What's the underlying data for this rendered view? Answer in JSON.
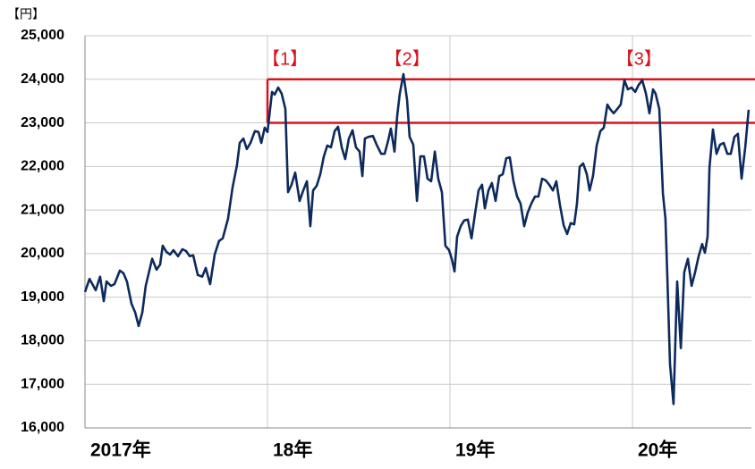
{
  "chart_data": {
    "type": "line",
    "unit_label": "【円】",
    "color": "#0d2a5c",
    "xlim": [
      2017,
      2020.652
    ],
    "xticks": [
      {
        "value": 2017,
        "label": "2017年"
      },
      {
        "value": 2018,
        "label": "18年"
      },
      {
        "value": 2019,
        "label": "19年"
      },
      {
        "value": 2020,
        "label": "20年"
      }
    ],
    "ylim": [
      16000,
      25000
    ],
    "yticks": [
      {
        "value": 16000,
        "label": "16,000"
      },
      {
        "value": 17000,
        "label": "17,000"
      },
      {
        "value": 18000,
        "label": "18,000"
      },
      {
        "value": 19000,
        "label": "19,000"
      },
      {
        "value": 20000,
        "label": "20,000"
      },
      {
        "value": 21000,
        "label": "21,000"
      },
      {
        "value": 22000,
        "label": "22,000"
      },
      {
        "value": 23000,
        "label": "23,000"
      },
      {
        "value": 24000,
        "label": "24,000"
      },
      {
        "value": 25000,
        "label": "25,000"
      }
    ],
    "grid": true,
    "highlight_band": {
      "color": "#d7141e",
      "xstart": 2018,
      "ylim": [
        23000,
        24000
      ]
    },
    "annotations": [
      {
        "label": "【1】",
        "x": 2018.0
      },
      {
        "label": "【2】",
        "x": 2018.67
      },
      {
        "label": "【3】",
        "x": 2019.94
      }
    ],
    "x": [
      2017.0,
      2017.025,
      2017.059,
      2017.083,
      2017.103,
      2017.118,
      2017.142,
      2017.162,
      2017.191,
      2017.211,
      2017.23,
      2017.255,
      2017.275,
      2017.294,
      2017.314,
      2017.333,
      2017.368,
      2017.392,
      2017.412,
      2017.426,
      2017.446,
      2017.466,
      2017.485,
      2017.51,
      2017.534,
      2017.554,
      2017.574,
      2017.593,
      2017.618,
      2017.642,
      2017.662,
      2017.686,
      2017.711,
      2017.735,
      2017.755,
      2017.784,
      2017.809,
      2017.833,
      2017.848,
      2017.868,
      2017.887,
      2017.907,
      2017.931,
      2017.951,
      2017.966,
      2017.985,
      2018.0,
      2018.025,
      2018.039,
      2018.059,
      2018.078,
      2018.098,
      2018.113,
      2018.132,
      2018.152,
      2018.176,
      2018.196,
      2018.216,
      2018.235,
      2018.25,
      2018.27,
      2018.289,
      2018.309,
      2018.328,
      2018.348,
      2018.368,
      2018.387,
      2018.407,
      2018.426,
      2018.446,
      2018.466,
      2018.485,
      2018.505,
      2018.52,
      2018.534,
      2018.554,
      2018.578,
      2018.598,
      2018.623,
      2018.642,
      2018.662,
      2018.676,
      2018.696,
      2018.711,
      2018.725,
      2018.745,
      2018.765,
      2018.779,
      2018.799,
      2018.819,
      2018.838,
      2018.858,
      2018.877,
      2018.897,
      2018.917,
      2018.936,
      2018.956,
      2018.975,
      2018.995,
      2019.01,
      2019.025,
      2019.039,
      2019.059,
      2019.078,
      2019.098,
      2019.118,
      2019.137,
      2019.157,
      2019.176,
      2019.191,
      2019.211,
      2019.23,
      2019.25,
      2019.27,
      2019.289,
      2019.309,
      2019.328,
      2019.348,
      2019.368,
      2019.387,
      2019.407,
      2019.426,
      2019.446,
      2019.466,
      2019.485,
      2019.505,
      2019.525,
      2019.544,
      2019.564,
      2019.583,
      2019.603,
      2019.623,
      2019.642,
      2019.662,
      2019.681,
      2019.696,
      2019.711,
      2019.73,
      2019.75,
      2019.765,
      2019.784,
      2019.804,
      2019.824,
      2019.843,
      2019.863,
      2019.877,
      2019.897,
      2019.917,
      2019.936,
      2019.956,
      2019.975,
      2019.995,
      2020.015,
      2020.034,
      2020.054,
      2020.074,
      2020.093,
      2020.113,
      2020.127,
      2020.147,
      2020.167,
      2020.181,
      2020.191,
      2020.206,
      2020.225,
      2020.245,
      2020.265,
      2020.284,
      2020.304,
      2020.324,
      2020.343,
      2020.363,
      2020.382,
      2020.397,
      2020.412,
      2020.422,
      2020.441,
      2020.461,
      2020.48,
      2020.5,
      2020.52,
      2020.539,
      2020.559,
      2020.578,
      2020.598,
      2020.618,
      2020.637
    ],
    "values": [
      19120,
      19420,
      19160,
      19470,
      18910,
      19360,
      19260,
      19300,
      19610,
      19550,
      19360,
      18850,
      18650,
      18340,
      18650,
      19260,
      19880,
      19630,
      19750,
      20180,
      20040,
      19980,
      20080,
      19940,
      20100,
      20060,
      19940,
      19960,
      19510,
      19470,
      19670,
      19300,
      19980,
      20290,
      20350,
      20800,
      21520,
      22030,
      22540,
      22640,
      22400,
      22540,
      22810,
      22790,
      22540,
      22890,
      22790,
      23710,
      23650,
      23810,
      23670,
      23320,
      21410,
      21580,
      21860,
      21210,
      21450,
      21660,
      20630,
      21450,
      21560,
      21820,
      22230,
      22480,
      22440,
      22810,
      22910,
      22440,
      22170,
      22640,
      22830,
      22440,
      22340,
      21780,
      22640,
      22680,
      22700,
      22500,
      22290,
      22290,
      22600,
      22870,
      22340,
      23160,
      23670,
      24120,
      23520,
      22680,
      22500,
      21210,
      22230,
      22230,
      21720,
      21660,
      22340,
      21720,
      21410,
      20180,
      20080,
      19880,
      19590,
      20390,
      20630,
      20760,
      20780,
      20350,
      20900,
      21450,
      21580,
      21040,
      21450,
      21620,
      21210,
      21780,
      21820,
      22190,
      22210,
      21660,
      21310,
      21150,
      20630,
      20940,
      21150,
      21310,
      21310,
      21720,
      21680,
      21580,
      21450,
      21660,
      21110,
      20650,
      20450,
      20700,
      20670,
      21150,
      21990,
      22070,
      21820,
      21450,
      21780,
      22480,
      22810,
      22890,
      23420,
      23320,
      23220,
      23320,
      23420,
      23980,
      23770,
      23810,
      23710,
      23870,
      23980,
      23670,
      23220,
      23770,
      23670,
      23320,
      21370,
      20800,
      19470,
      17460,
      16550,
      19360,
      17830,
      19570,
      19880,
      19260,
      19570,
      19940,
      20220,
      20020,
      20390,
      21970,
      22850,
      22290,
      22500,
      22540,
      22290,
      22290,
      22680,
      22750,
      21720,
      22440,
      23300
    ]
  }
}
